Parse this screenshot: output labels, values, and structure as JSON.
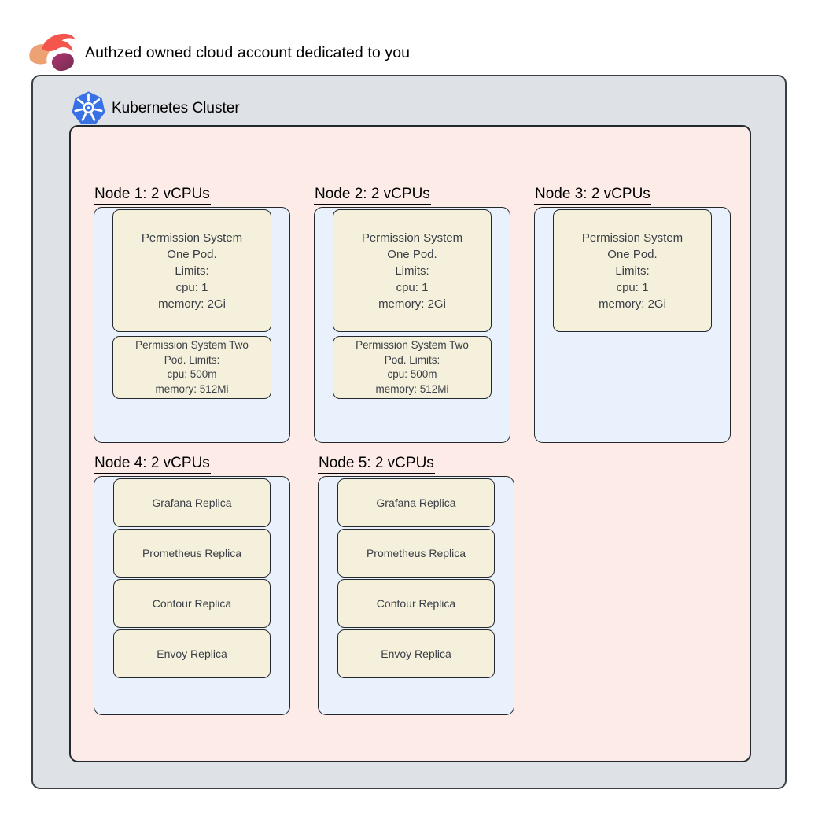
{
  "page": {
    "title": "Authzed owned cloud account dedicated to you"
  },
  "cluster": {
    "title": "Kubernetes Cluster"
  },
  "icons": {
    "authzed_logo": "authzed-planet-swirl",
    "kubernetes_logo": "kubernetes-helm-wheel"
  },
  "colors": {
    "account_fill": "#dee1e5",
    "cluster_fill": "#fcebe7",
    "node_fill": "#e8f1fc",
    "pod_fill": "#f5f0dc",
    "outer_border": "#3a3f45",
    "inner_border": "#23282d",
    "label_text": "#000000",
    "pod_text": "#3a3f46",
    "kubernetes_blue": "#3970e4",
    "authzed_red": "#f4564e",
    "authzed_peach": "#eca273",
    "authzed_purple_dark": "#722c4e",
    "authzed_purple_light": "#b13573"
  },
  "nodes": [
    {
      "label": "Node 1: 2 vCPUs",
      "pods": [
        {
          "lines": [
            "Permission System",
            "One Pod.",
            "Limits:",
            "cpu: 1",
            "memory: 2Gi"
          ]
        },
        {
          "lines": [
            "Permission System Two",
            "Pod. Limits:",
            "cpu: 500m",
            "memory: 512Mi"
          ]
        }
      ]
    },
    {
      "label": "Node 2: 2 vCPUs",
      "pods": [
        {
          "lines": [
            "Permission System",
            "One Pod.",
            "Limits:",
            "cpu: 1",
            "memory: 2Gi"
          ]
        },
        {
          "lines": [
            "Permission System Two",
            "Pod. Limits:",
            "cpu: 500m",
            "memory: 512Mi"
          ]
        }
      ]
    },
    {
      "label": "Node 3: 2 vCPUs",
      "pods": [
        {
          "lines": [
            "Permission System",
            "One Pod.",
            "Limits:",
            "cpu: 1",
            "memory: 2Gi"
          ]
        }
      ]
    },
    {
      "label": "Node 4: 2 vCPUs",
      "pods": [
        {
          "lines": [
            "Grafana Replica"
          ]
        },
        {
          "lines": [
            "Prometheus Replica"
          ]
        },
        {
          "lines": [
            "Contour Replica"
          ]
        },
        {
          "lines": [
            "Envoy Replica"
          ]
        }
      ]
    },
    {
      "label": "Node 5: 2 vCPUs",
      "pods": [
        {
          "lines": [
            "Grafana Replica"
          ]
        },
        {
          "lines": [
            "Prometheus Replica"
          ]
        },
        {
          "lines": [
            "Contour Replica"
          ]
        },
        {
          "lines": [
            "Envoy Replica"
          ]
        }
      ]
    }
  ]
}
